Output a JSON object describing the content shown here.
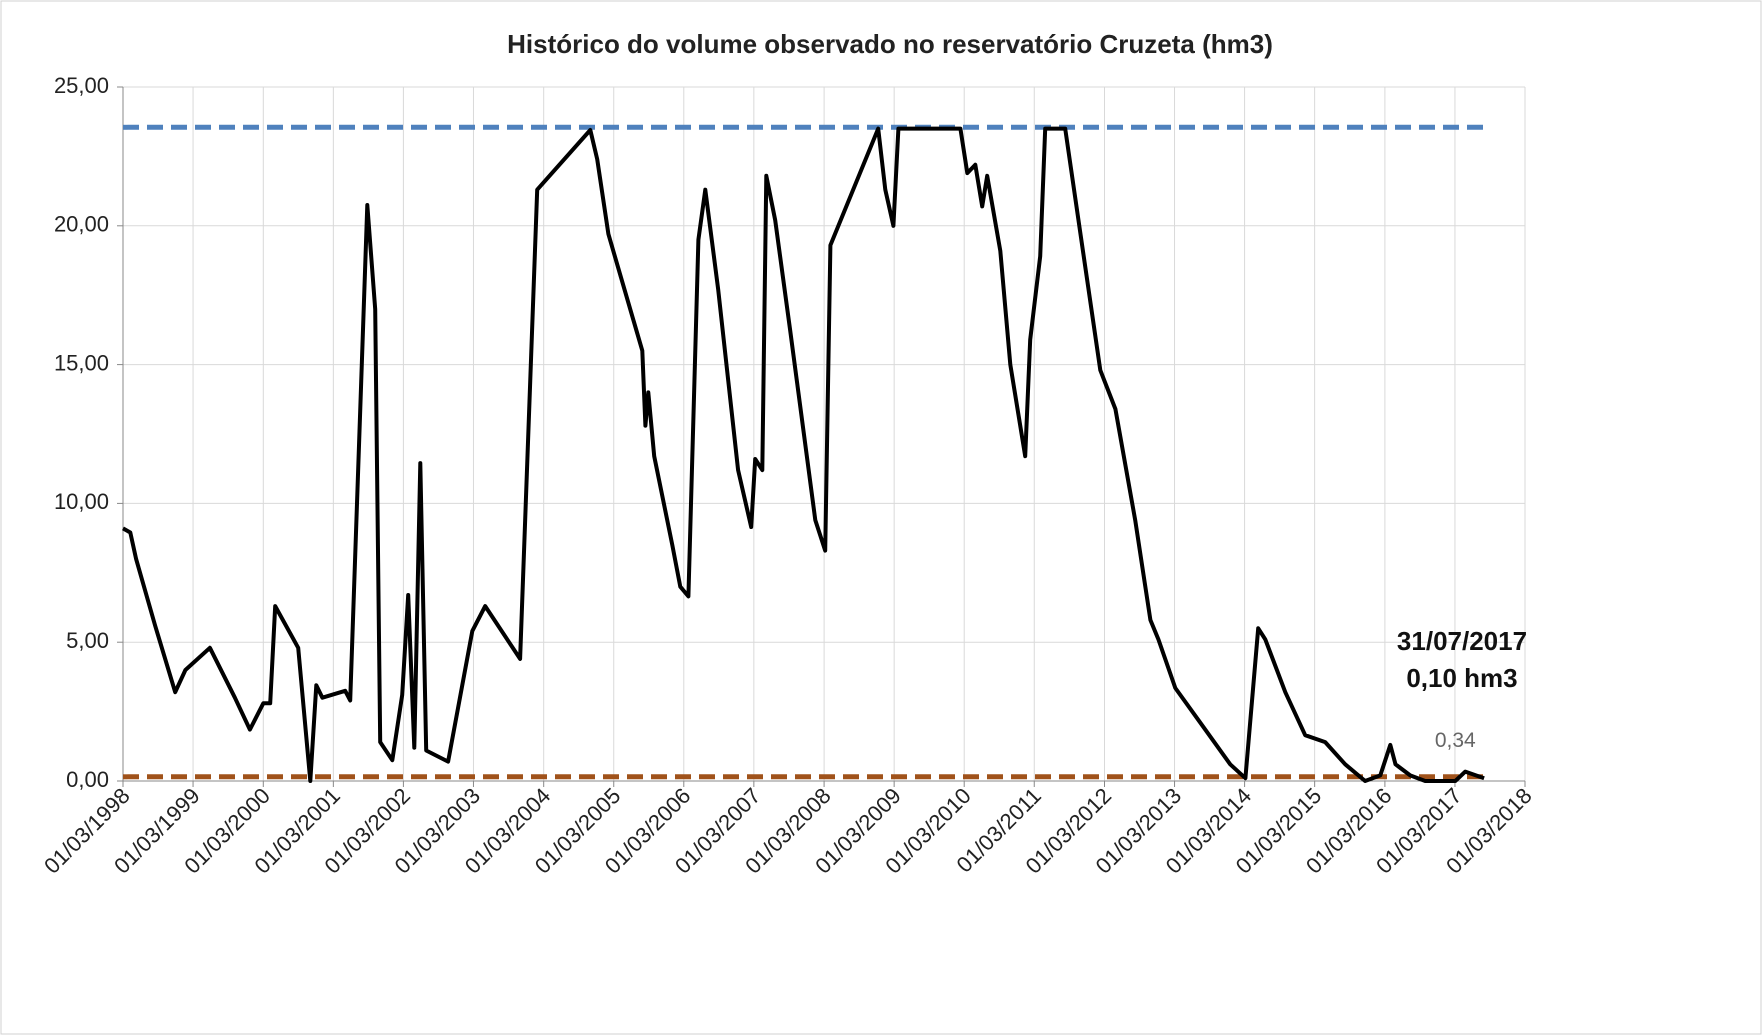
{
  "chart_data": {
    "type": "line",
    "title": "Histórico do volume observado no reservatório Cruzeta (hm3)",
    "annotations": [
      "31/07/2017",
      "0,10 hm3"
    ],
    "xlim": [
      "1998-03-01",
      "2018-03-01"
    ],
    "xticks": [
      {
        "value": "1998-03-01",
        "label": "01/03/1998"
      },
      {
        "value": "1999-03-01",
        "label": "01/03/1999"
      },
      {
        "value": "2000-03-01",
        "label": "01/03/2000"
      },
      {
        "value": "2001-03-01",
        "label": "01/03/2001"
      },
      {
        "value": "2002-03-01",
        "label": "01/03/2002"
      },
      {
        "value": "2003-03-01",
        "label": "01/03/2003"
      },
      {
        "value": "2004-03-01",
        "label": "01/03/2004"
      },
      {
        "value": "2005-03-01",
        "label": "01/03/2005"
      },
      {
        "value": "2006-03-01",
        "label": "01/03/2006"
      },
      {
        "value": "2007-03-01",
        "label": "01/03/2007"
      },
      {
        "value": "2008-03-01",
        "label": "01/03/2008"
      },
      {
        "value": "2009-03-01",
        "label": "01/03/2009"
      },
      {
        "value": "2010-03-01",
        "label": "01/03/2010"
      },
      {
        "value": "2011-03-01",
        "label": "01/03/2011"
      },
      {
        "value": "2012-03-01",
        "label": "01/03/2012"
      },
      {
        "value": "2013-03-01",
        "label": "01/03/2013"
      },
      {
        "value": "2014-03-01",
        "label": "01/03/2014"
      },
      {
        "value": "2015-03-01",
        "label": "01/03/2015"
      },
      {
        "value": "2016-03-01",
        "label": "01/03/2016"
      },
      {
        "value": "2017-03-01",
        "label": "01/03/2017"
      },
      {
        "value": "2018-03-01",
        "label": "01/03/2018"
      }
    ],
    "ylim": [
      0,
      25
    ],
    "yticks": [
      {
        "value": 0,
        "label": "0,00"
      },
      {
        "value": 5,
        "label": "5,00"
      },
      {
        "value": 10,
        "label": "10,00"
      },
      {
        "value": 15,
        "label": "15,00"
      },
      {
        "value": 20,
        "label": "20,00"
      },
      {
        "value": 25,
        "label": "25,00"
      }
    ],
    "grid": true,
    "series": [
      {
        "color": "#4f81bd",
        "dashed": true,
        "x": [
          "1998-03-01",
          "2017-07-31"
        ],
        "values": [
          23.55,
          23.55
        ]
      },
      {
        "color": "#a0521a",
        "dashed": true,
        "x": [
          "1998-03-01",
          "2017-07-31"
        ],
        "values": [
          0.15,
          0.15
        ]
      },
      {
        "color": "#000000",
        "dashed": false,
        "x": [
          "1998-03-01",
          "1998-04-08",
          "1998-05-08",
          "1998-08-15",
          "1998-11-28",
          "1999-01-20",
          "1999-05-28",
          "1999-10-05",
          "1999-12-22",
          "2000-03-01",
          "2000-04-06",
          "2000-05-02",
          "2000-08-30",
          "2000-11-01",
          "2000-12-02",
          "2001-01-03",
          "2001-05-02",
          "2001-05-28",
          "2001-08-25",
          "2001-10-05",
          "2001-10-31",
          "2002-01-02",
          "2002-02-23",
          "2002-03-26",
          "2002-04-27",
          "2002-05-28",
          "2002-06-28",
          "2002-10-20",
          "2003-02-23",
          "2003-05-01",
          "2003-10-30",
          "2004-01-27",
          "2004-10-30",
          "2004-12-05",
          "2005-02-01",
          "2005-07-28",
          "2005-08-13",
          "2005-08-28",
          "2005-09-28",
          "2005-12-31",
          "2006-02-11",
          "2006-03-25",
          "2006-05-16",
          "2006-06-21",
          "2006-08-27",
          "2006-12-09",
          "2007-02-15",
          "2007-03-08",
          "2007-04-14",
          "2007-05-05",
          "2007-06-20",
          "2007-09-07",
          "2008-01-15",
          "2008-03-07",
          "2008-04-03",
          "2008-12-08",
          "2009-01-14",
          "2009-02-25",
          "2009-03-23",
          "2010-02-09",
          "2010-03-17",
          "2010-04-28",
          "2010-06-03",
          "2010-06-29",
          "2010-09-05",
          "2010-10-27",
          "2011-01-13",
          "2011-02-08",
          "2011-04-01",
          "2011-04-27",
          "2011-08-09",
          "2011-10-26",
          "2012-02-08",
          "2012-04-27",
          "2012-08-08",
          "2012-10-26",
          "2012-12-07",
          "2013-03-05",
          "2013-07-13",
          "2013-12-16",
          "2014-03-05",
          "2014-05-11",
          "2014-06-17",
          "2014-09-29",
          "2015-01-11",
          "2015-04-25",
          "2015-08-07",
          "2015-11-19",
          "2016-02-06",
          "2016-03-29",
          "2016-04-25",
          "2016-07-11",
          "2016-09-27",
          "2017-03-03",
          "2017-04-24",
          "2017-07-31"
        ],
        "values": [
          9.1,
          8.95,
          8.0,
          5.6,
          3.2,
          4.0,
          4.8,
          3.0,
          1.85,
          2.8,
          2.8,
          6.3,
          4.8,
          0,
          3.45,
          3.0,
          3.25,
          2.9,
          20.75,
          17.0,
          1.4,
          0.75,
          3.1,
          6.7,
          1.2,
          11.45,
          1.1,
          0.7,
          5.4,
          6.3,
          4.4,
          21.3,
          23.45,
          22.4,
          19.7,
          15.5,
          12.8,
          14.0,
          11.7,
          8.5,
          7.0,
          6.65,
          19.5,
          21.3,
          17.7,
          11.2,
          9.15,
          11.6,
          11.2,
          21.8,
          20.2,
          16.2,
          9.4,
          8.3,
          19.3,
          23.5,
          21.3,
          20.0,
          23.5,
          23.5,
          21.9,
          22.2,
          20.7,
          21.8,
          19.1,
          15.0,
          11.7,
          15.9,
          18.9,
          23.5,
          23.5,
          19.8,
          14.8,
          13.4,
          9.4,
          5.8,
          5.1,
          3.35,
          2.1,
          0.6,
          0.1,
          5.5,
          5.1,
          3.2,
          1.65,
          1.4,
          0.6,
          0,
          0.2,
          1.3,
          0.6,
          0.2,
          0,
          0,
          0.34,
          0.1
        ],
        "value_labels": [
          null,
          null,
          null,
          null,
          null,
          null,
          null,
          null,
          null,
          null,
          null,
          null,
          null,
          null,
          null,
          null,
          null,
          null,
          null,
          null,
          null,
          null,
          null,
          null,
          null,
          null,
          null,
          null,
          null,
          null,
          null,
          null,
          null,
          null,
          null,
          null,
          null,
          null,
          null,
          null,
          null,
          null,
          null,
          null,
          null,
          null,
          null,
          null,
          null,
          null,
          null,
          null,
          null,
          null,
          null,
          null,
          null,
          null,
          null,
          null,
          null,
          null,
          null,
          null,
          null,
          null,
          null,
          null,
          null,
          null,
          null,
          null,
          null,
          null,
          null,
          null,
          null,
          null,
          null,
          null,
          null,
          null,
          null,
          null,
          null,
          null,
          null,
          null,
          null,
          null,
          null,
          null,
          null,
          null,
          "0,34",
          null
        ]
      }
    ]
  }
}
